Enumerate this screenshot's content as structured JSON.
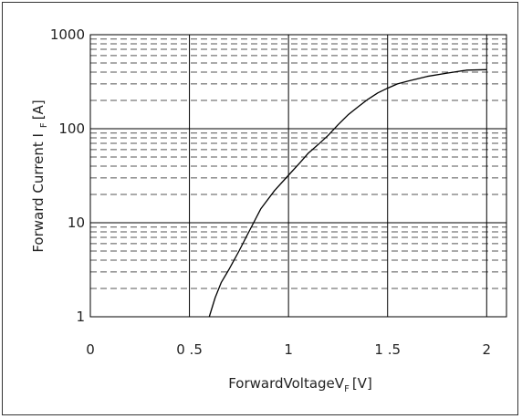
{
  "chart_data": {
    "type": "line",
    "xlabel": "ForwardVoltage",
    "xlabel_symbol": "V",
    "xlabel_subscript": "F",
    "xlabel_unit": "[V]",
    "ylabel": "Forward Current I",
    "ylabel_subscript": "F",
    "ylabel_unit": "[A]",
    "x_scale": "linear",
    "y_scale": "log",
    "xlim": [
      0,
      2.1
    ],
    "ylim": [
      1,
      1000
    ],
    "x_ticks": [
      {
        "value": 0,
        "label": "0"
      },
      {
        "value": 0.5,
        "label": "0 .5"
      },
      {
        "value": 1.0,
        "label": "1"
      },
      {
        "value": 1.5,
        "label": "1 .5"
      },
      {
        "value": 2.0,
        "label": "2"
      }
    ],
    "y_ticks": [
      {
        "value": 1,
        "label": "1"
      },
      {
        "value": 10,
        "label": "10"
      },
      {
        "value": 100,
        "label": "100"
      },
      {
        "value": 1000,
        "label": "1000"
      }
    ],
    "grid": {
      "major_solid": true,
      "minor_dashed": true
    },
    "series": [
      {
        "color": "#000000",
        "x": [
          0.6,
          0.63,
          0.66,
          0.7,
          0.75,
          0.8,
          0.86,
          0.93,
          1.0,
          1.06,
          1.1,
          1.15,
          1.2,
          1.25,
          1.3,
          1.35,
          1.4,
          1.45,
          1.5,
          1.55,
          1.6,
          1.7,
          1.8,
          1.9,
          2.0
        ],
        "y": [
          1,
          1.6,
          2.3,
          3.2,
          5,
          8,
          14,
          22,
          32,
          44,
          55,
          68,
          85,
          110,
          140,
          170,
          205,
          240,
          270,
          300,
          320,
          360,
          390,
          420,
          425
        ]
      }
    ]
  }
}
